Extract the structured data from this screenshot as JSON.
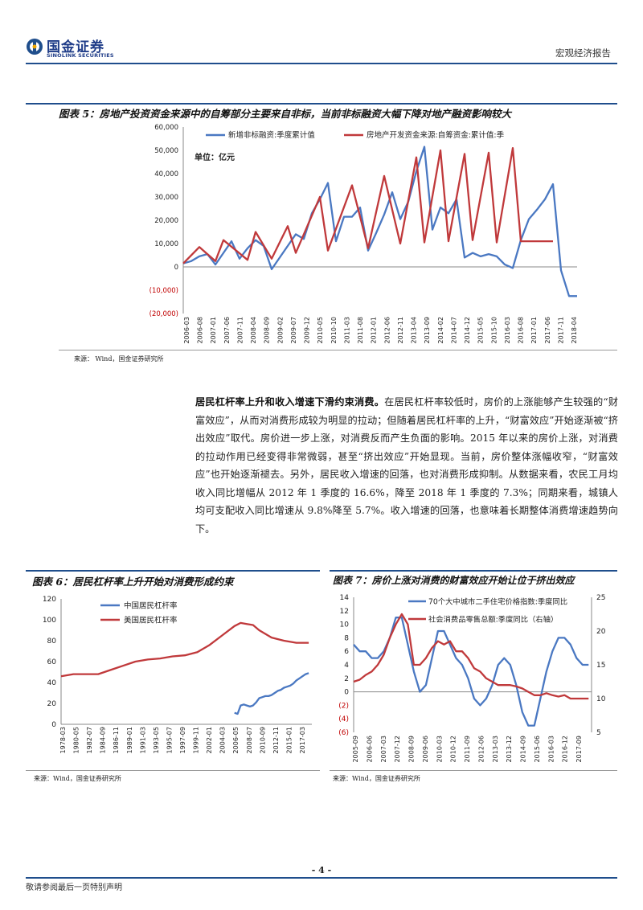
{
  "header": {
    "logo_cn": "国金证券",
    "logo_en": "SINOLINK SECURITIES",
    "report_type": "宏观经济报告"
  },
  "fig5": {
    "title": "图表 5：房地产投资资金来源中的自筹部分主要来自非标，当前非标融资大幅下降对地产融资影响较大",
    "unit": "单位：亿元",
    "source": "来源：  Wind，国金证券研究所"
  },
  "body": {
    "bold_lead": "居民杠杆率上升和收入增速下滑约束消费。",
    "text": "在居民杠杆率较低时，房价的上涨能够产生较强的“财富效应”，从而对消费形成较为明显的拉动；但随着居民杠杆率的上升，“财富效应”开始逐渐被“挤出效应”取代。房价进一步上涨，对消费反而产生负面的影响。2015 年以来的房价上涨，对消费的拉动作用已经变得非常微弱，甚至“挤出效应”开始显现。当前，房价整体涨幅收窄，“财富效应”也开始逐渐褪去。另外，居民收入增速的回落，也对消费形成抑制。从数据来看，农民工月均收入同比增幅从 2012 年 1 季度的 16.6%，降至 2018 年 1 季度的 7.3%；同期来看，城镇人均可支配收入同比增速从 9.8%降至 5.7%。收入增速的回落，也意味着长期整体消费增速趋势向下。"
  },
  "fig6": {
    "title": "图表 6：居民杠杆率上升开始对消费形成约束",
    "source": "来源：Wind，国金证券研究所"
  },
  "fig7": {
    "title": "图表 7：房价上涨对消费的财富效应开始让位于挤出效应",
    "source": "来源：Wind，国金证券研究所"
  },
  "footer": {
    "page": "- 4 -",
    "disclaimer": "敬请参阅最后一页特别声明"
  },
  "chart_data": [
    {
      "type": "line",
      "unit": "单位：亿元",
      "ylim": [
        -20000,
        60000
      ],
      "yticks": [
        "60,000",
        "50,000",
        "40,000",
        "30,000",
        "20,000",
        "10,000",
        "0",
        "(10,000)",
        "(20,000)"
      ],
      "xticks": [
        "2006-03",
        "2006-08",
        "2007-01",
        "2007-06",
        "2007-11",
        "2008-04",
        "2008-09",
        "2009-02",
        "2009-07",
        "2009-12",
        "2010-05",
        "2010-10",
        "2011-03",
        "2011-08",
        "2012-01",
        "2012-06",
        "2012-11",
        "2013-04",
        "2013-09",
        "2014-02",
        "2014-07",
        "2014-12",
        "2015-05",
        "2015-10",
        "2016-03",
        "2016-08",
        "2017-01",
        "2017-06",
        "2017-11",
        "2018-04"
      ],
      "legend": "top",
      "series": [
        {
          "name": "新增非标融资:季度累计值",
          "color": "#4a78c2",
          "x": [
            0,
            1,
            2,
            3,
            4,
            5,
            6,
            7,
            8,
            9,
            10,
            11,
            12,
            13,
            14,
            15,
            16,
            17,
            18,
            19,
            20,
            21,
            22,
            23,
            24,
            25,
            26,
            27,
            28,
            29,
            30,
            31,
            32,
            33,
            34,
            35,
            36,
            37,
            38,
            39,
            40,
            41,
            42,
            43,
            44,
            45,
            46,
            47,
            48,
            49
          ],
          "values": [
            1500,
            2500,
            4500,
            5500,
            1000,
            6000,
            11000,
            3500,
            8000,
            11500,
            9000,
            -1000,
            4000,
            9000,
            14000,
            12000,
            23000,
            29000,
            36000,
            11000,
            21500,
            21500,
            25500,
            7000,
            14500,
            22500,
            32000,
            20500,
            28000,
            41000,
            51500,
            16000,
            25500,
            23000,
            29000,
            4000,
            6000,
            4500,
            5500,
            4500,
            1000,
            -500,
            11500,
            20500,
            24500,
            29000,
            35500,
            -1500,
            -12500,
            -12500
          ]
        },
        {
          "name": "房地产开发资金来源:自筹资金:累计值:季",
          "color": "#c0393b",
          "x": [
            0,
            2,
            4,
            5,
            8,
            9,
            11,
            13,
            14,
            17,
            18,
            21,
            23,
            25,
            27,
            29,
            30,
            32,
            33,
            35,
            36,
            38,
            39,
            41,
            42,
            45,
            46
          ],
          "values": [
            1500,
            8500,
            2500,
            11500,
            3000,
            15000,
            3500,
            17500,
            6000,
            30000,
            7000,
            35000,
            8000,
            39000,
            10000,
            47000,
            10500,
            50000,
            11000,
            48500,
            11500,
            49000,
            10500,
            51000,
            11000,
            11000,
            11000
          ]
        }
      ]
    },
    {
      "type": "line",
      "ylim": [
        0,
        120
      ],
      "yticks": [
        "120",
        "100",
        "80",
        "60",
        "40",
        "20",
        "0"
      ],
      "xticks": [
        "1978-03",
        "1980-05",
        "1982-07",
        "1984-09",
        "1986-11",
        "1989-01",
        "1991-03",
        "1993-05",
        "1995-07",
        "1997-09",
        "1999-11",
        "2002-01",
        "2004-03",
        "2006-05",
        "2008-07",
        "2010-09",
        "2012-11",
        "2015-01",
        "2017-03"
      ],
      "legend": "top-left",
      "series": [
        {
          "name": "中国居民杠杆率",
          "color": "#4a78c2",
          "x": [
            2006.0,
            2006.5,
            2007.0,
            2007.5,
            2008.0,
            2008.5,
            2009.0,
            2009.5,
            2010.0,
            2010.5,
            2011.0,
            2011.5,
            2012.0,
            2012.5,
            2013.0,
            2013.5,
            2014.0,
            2014.5,
            2015.0,
            2015.5,
            2016.0,
            2016.5,
            2017.0,
            2017.5,
            2018.0
          ],
          "values": [
            11,
            10,
            18,
            19,
            18,
            17,
            18,
            21,
            25,
            26,
            27,
            27,
            28,
            30,
            32,
            33,
            35,
            36,
            37,
            39,
            42,
            44,
            46,
            48,
            49
          ]
        },
        {
          "name": "美国居民杠杆率",
          "color": "#c0393b",
          "x": [
            1978,
            1980,
            1982,
            1984,
            1986,
            1988,
            1990,
            1992,
            1994,
            1996,
            1998,
            2000,
            2002,
            2004,
            2006,
            2007,
            2008,
            2009,
            2010,
            2012,
            2014,
            2016,
            2017,
            2018
          ],
          "values": [
            46,
            48,
            48,
            48,
            52,
            56,
            60,
            62,
            63,
            65,
            66,
            69,
            76,
            85,
            94,
            97,
            96,
            95,
            90,
            83,
            80,
            78,
            78,
            78
          ]
        }
      ]
    },
    {
      "type": "line",
      "ylim_left": [
        -6,
        14
      ],
      "ylim_right": [
        5,
        25
      ],
      "yticks_left": [
        "14",
        "12",
        "10",
        "8",
        "6",
        "4",
        "2",
        "0",
        "(2)",
        "(4)",
        "(6)"
      ],
      "yticks_right": [
        "25",
        "20",
        "15",
        "10",
        "5"
      ],
      "xticks": [
        "2005-09",
        "2006-06",
        "2007-03",
        "2007-12",
        "2008-09",
        "2009-06",
        "2010-03",
        "2010-12",
        "2011-09",
        "2012-06",
        "2013-03",
        "2013-12",
        "2014-09",
        "2015-06",
        "2016-03",
        "2016-12",
        "2017-09"
      ],
      "legend": "top-right",
      "series": [
        {
          "name": "70个大中城市二手住宅价格指数:季度同比",
          "color": "#4a78c2",
          "axis": "left",
          "x": [
            0,
            2,
            4,
            6,
            8,
            10,
            12,
            14,
            16,
            18,
            20,
            22,
            24,
            26,
            28,
            30,
            32,
            34,
            36,
            38,
            40,
            42,
            44,
            46,
            48,
            50,
            52,
            54,
            56,
            58,
            60,
            62,
            64,
            66,
            68,
            70,
            72,
            74,
            76,
            78
          ],
          "values": [
            7,
            6,
            6,
            5,
            5,
            6,
            8,
            11,
            11,
            7,
            3,
            0,
            1,
            5,
            9,
            9,
            7,
            5,
            4,
            2,
            -1,
            -2,
            -1,
            1,
            4,
            5,
            4,
            1,
            -3,
            -5,
            -5,
            -1,
            3,
            6,
            8,
            8,
            7,
            5,
            4,
            4
          ]
        },
        {
          "name": "社会消费品零售总额:季度同比（右轴）",
          "color": "#c0393b",
          "axis": "right",
          "x": [
            0,
            2,
            4,
            6,
            8,
            10,
            12,
            14,
            16,
            18,
            20,
            22,
            24,
            26,
            28,
            30,
            32,
            34,
            36,
            38,
            40,
            42,
            44,
            46,
            48,
            50,
            52,
            54,
            56,
            58,
            60,
            62,
            64,
            66,
            68,
            70,
            72,
            74,
            76,
            78
          ],
          "values": [
            12.5,
            12.8,
            13.5,
            14,
            15,
            16.5,
            19,
            21,
            22.5,
            21,
            15,
            15,
            16,
            17.5,
            18.5,
            18,
            18.5,
            17,
            17,
            16,
            14.5,
            14,
            13,
            12.5,
            12,
            12,
            12,
            11.8,
            11.5,
            11,
            10.5,
            10.5,
            10.8,
            10.5,
            10.3,
            10.5,
            10,
            10,
            10,
            10
          ]
        }
      ]
    }
  ]
}
